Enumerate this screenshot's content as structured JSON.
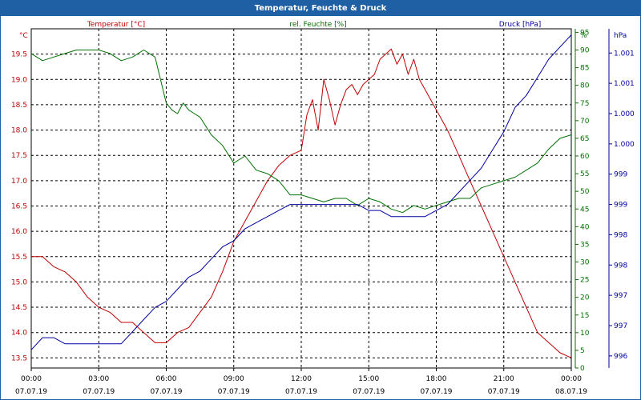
{
  "window": {
    "title": "Temperatur, Feuchte & Druck"
  },
  "colors": {
    "temperature": "#c00000",
    "humidity": "#007000",
    "pressure": "#0000a0",
    "grid": "#000000",
    "title_bar": "#1f5fa3"
  },
  "chart_data": {
    "type": "line",
    "title": "Temperatur, Feuchte & Druck",
    "grid": true,
    "x": {
      "range": [
        "07.07.19 00:00",
        "08.07.19 00:00"
      ],
      "ticks": [
        {
          "time": "00:00",
          "date": "07.07.19"
        },
        {
          "time": "03:00",
          "date": "07.07.19"
        },
        {
          "time": "06:00",
          "date": "07.07.19"
        },
        {
          "time": "09:00",
          "date": "07.07.19"
        },
        {
          "time": "12:00",
          "date": "07.07.19"
        },
        {
          "time": "15:00",
          "date": "07.07.19"
        },
        {
          "time": "18:00",
          "date": "07.07.19"
        },
        {
          "time": "21:00",
          "date": "07.07.19"
        },
        {
          "time": "00:00",
          "date": "08.07.19"
        }
      ]
    },
    "axes": {
      "temperature": {
        "label": "Temperatur [°C]",
        "unit": "°C",
        "range": [
          13.3,
          20.0
        ],
        "ticks": [
          "13.5",
          "14.0",
          "14.5",
          "15.0",
          "15.5",
          "16.0",
          "16.5",
          "17.0",
          "17.5",
          "18.0",
          "18.5",
          "19.0",
          "19.5"
        ]
      },
      "humidity": {
        "label": "rel. Feuchte [%]",
        "unit": "%",
        "range": [
          0,
          96
        ],
        "ticks": [
          "0",
          "5",
          "10",
          "15",
          "20",
          "25",
          "30",
          "35",
          "40",
          "45",
          "50",
          "55",
          "60",
          "65",
          "70",
          "75",
          "80",
          "85",
          "90",
          "95"
        ]
      },
      "pressure": {
        "label": "Druck [hPa]",
        "unit": "hPa",
        "range": [
          995.8,
          1001.4
        ],
        "ticks": [
          {
            "label": "996",
            "value": 996.0
          },
          {
            "label": "997",
            "value": 996.5
          },
          {
            "label": "997",
            "value": 997.0
          },
          {
            "label": "998",
            "value": 997.5
          },
          {
            "label": "998",
            "value": 998.0
          },
          {
            "label": "999",
            "value": 998.5
          },
          {
            "label": "999",
            "value": 999.0
          },
          {
            "label": "1.000",
            "value": 999.5
          },
          {
            "label": "1.000",
            "value": 1000.0
          },
          {
            "label": "1.001",
            "value": 1000.5
          },
          {
            "label": "1.001",
            "value": 1001.0
          }
        ]
      }
    },
    "series": [
      {
        "name": "Temperatur [°C]",
        "axis": "temperature",
        "color": "#c00000",
        "x_hours": [
          0,
          0.5,
          1,
          1.5,
          2,
          2.5,
          3,
          3.5,
          4,
          4.5,
          5,
          5.5,
          6,
          6.5,
          7,
          7.5,
          8,
          8.5,
          9,
          9.5,
          10,
          10.5,
          11,
          11.5,
          12,
          12.25,
          12.5,
          12.75,
          13,
          13.25,
          13.5,
          13.75,
          14,
          14.25,
          14.5,
          14.75,
          15,
          15.25,
          15.5,
          15.75,
          16,
          16.25,
          16.5,
          16.75,
          17,
          17.25,
          17.5,
          17.75,
          18,
          18.5,
          19,
          19.5,
          20,
          20.5,
          21,
          21.5,
          22,
          22.5,
          23,
          23.5,
          24
        ],
        "values": [
          15.5,
          15.5,
          15.3,
          15.2,
          15.0,
          14.7,
          14.5,
          14.4,
          14.2,
          14.2,
          14.0,
          13.8,
          13.8,
          14.0,
          14.1,
          14.4,
          14.7,
          15.2,
          15.8,
          16.2,
          16.6,
          17.0,
          17.3,
          17.5,
          17.6,
          18.3,
          18.6,
          18.0,
          19.0,
          18.6,
          18.1,
          18.5,
          18.8,
          18.9,
          18.7,
          18.9,
          19.0,
          19.1,
          19.4,
          19.5,
          19.6,
          19.3,
          19.5,
          19.1,
          19.4,
          19.0,
          18.8,
          18.6,
          18.4,
          18.0,
          17.5,
          17.0,
          16.5,
          16.0,
          15.5,
          15.0,
          14.5,
          14.0,
          13.8,
          13.6,
          13.5
        ]
      },
      {
        "name": "rel. Feuchte [%]",
        "axis": "humidity",
        "color": "#007000",
        "x_hours": [
          0,
          0.5,
          1,
          1.5,
          2,
          2.5,
          3,
          3.5,
          4,
          4.5,
          5,
          5.5,
          6,
          6.25,
          6.5,
          6.75,
          7,
          7.25,
          7.5,
          8,
          8.5,
          9,
          9.5,
          10,
          10.5,
          11,
          11.5,
          12,
          12.5,
          13,
          13.5,
          14,
          14.5,
          15,
          15.5,
          16,
          16.5,
          17,
          17.5,
          18,
          18.5,
          19,
          19.5,
          20,
          20.5,
          21,
          21.5,
          22,
          22.5,
          23,
          23.5,
          24
        ],
        "values": [
          89,
          87,
          88,
          89,
          90,
          90,
          90,
          89,
          87,
          88,
          90,
          88,
          75,
          73,
          72,
          75,
          73,
          72,
          71,
          66,
          63,
          58,
          60,
          56,
          55,
          53,
          49,
          49,
          48,
          47,
          48,
          48,
          46,
          48,
          47,
          45,
          44,
          46,
          45,
          46,
          47,
          48,
          48,
          51,
          52,
          53,
          54,
          56,
          58,
          62,
          65,
          66
        ]
      },
      {
        "name": "Druck [hPa]",
        "axis": "pressure",
        "color": "#0000a0",
        "x_hours": [
          0,
          0.5,
          1,
          1.5,
          2,
          2.5,
          3,
          3.5,
          4,
          4.5,
          5,
          5.5,
          6,
          6.5,
          7,
          7.5,
          8,
          8.5,
          9,
          9.5,
          10,
          10.5,
          11,
          11.5,
          12,
          12.5,
          13,
          13.5,
          14,
          14.5,
          15,
          15.5,
          16,
          16.5,
          17,
          17.5,
          18,
          18.5,
          19,
          19.5,
          20,
          20.5,
          21,
          21.5,
          22,
          22.5,
          23,
          23.5,
          24
        ],
        "values": [
          996.1,
          996.3,
          996.3,
          996.2,
          996.2,
          996.2,
          996.2,
          996.2,
          996.2,
          996.4,
          996.6,
          996.8,
          996.9,
          997.1,
          997.3,
          997.4,
          997.6,
          997.8,
          997.9,
          998.1,
          998.2,
          998.3,
          998.4,
          998.5,
          998.5,
          998.5,
          998.5,
          998.5,
          998.5,
          998.5,
          998.4,
          998.4,
          998.3,
          998.3,
          998.3,
          998.3,
          998.4,
          998.5,
          998.7,
          998.9,
          999.1,
          999.4,
          999.7,
          1000.1,
          1000.3,
          1000.6,
          1000.9,
          1001.1,
          1001.3
        ]
      }
    ]
  }
}
